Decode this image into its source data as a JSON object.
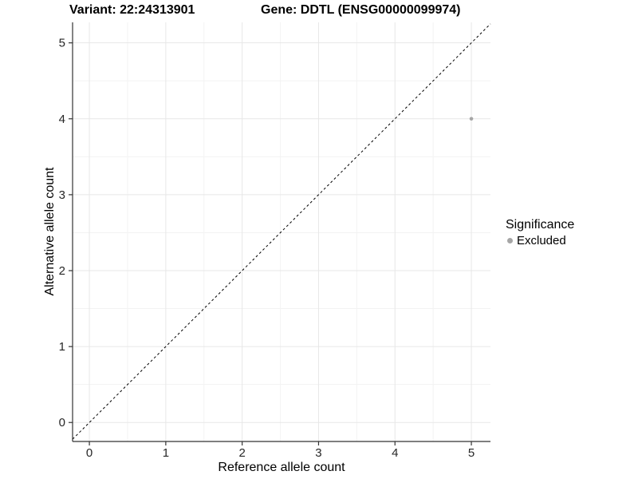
{
  "chart_data": {
    "type": "scatter",
    "title_left": "Variant: 22:24313901",
    "title_right": "Gene: DDTL (ENSG00000099974)",
    "xlabel": "Reference allele count",
    "ylabel": "Alternative allele count",
    "xlim": [
      -0.22,
      5.25
    ],
    "ylim": [
      -0.25,
      5.27
    ],
    "x_ticks": [
      0,
      1,
      2,
      3,
      4,
      5
    ],
    "y_ticks": [
      0,
      1,
      2,
      3,
      4,
      5
    ],
    "x_minor": [
      0.5,
      1.5,
      2.5,
      3.5,
      4.5
    ],
    "y_minor": [
      0.5,
      1.5,
      2.5,
      3.5,
      4.5
    ],
    "grid": true,
    "series": [
      {
        "name": "Excluded",
        "color": "#a6a6a6",
        "points": [
          {
            "x": 5,
            "y": 4
          }
        ]
      }
    ],
    "reference_line": {
      "type": "identity",
      "style": "dashed",
      "color": "#000000"
    },
    "legend": {
      "title": "Significance",
      "position": "right",
      "items": [
        {
          "label": "Excluded",
          "color": "#a6a6a6"
        }
      ]
    },
    "colors": {
      "background": "#ffffff",
      "grid_major": "#e7e7e7",
      "grid_minor": "#f3f3f3",
      "axis_line": "#333333",
      "tick": "#333333",
      "tick_label": "#262626",
      "text": "#000000"
    }
  }
}
